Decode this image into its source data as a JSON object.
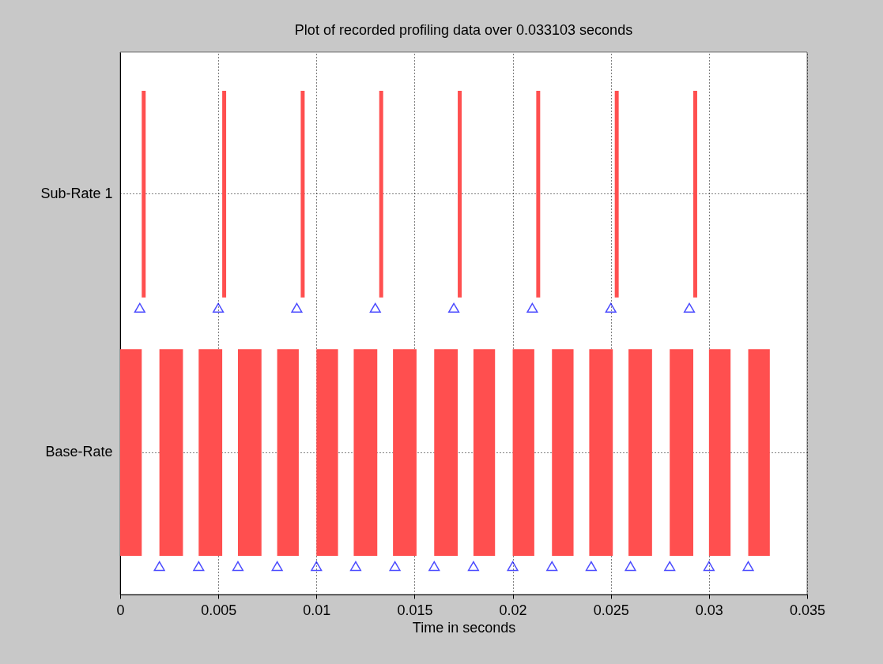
{
  "chart_data": {
    "type": "bar",
    "orientation": "horizontal",
    "title": "Plot of recorded profiling data over 0.033103 seconds",
    "xlabel": "Time in seconds",
    "categories": [
      "Sub-Rate 1",
      "Base-Rate"
    ],
    "xlim": [
      0,
      0.035
    ],
    "xticks": [
      0,
      0.005,
      0.01,
      0.015,
      0.02,
      0.025,
      0.03,
      0.035
    ],
    "grid": true,
    "series": [
      {
        "color": "#ff4f4f",
        "base": [
          0.0011,
          0
        ],
        "values": [
          0.0002,
          0.0011
        ]
      },
      {
        "color": "#ff4f4f",
        "base": [
          0.0052,
          0.002
        ],
        "values": [
          0.0002,
          0.0012
        ]
      },
      {
        "color": "#ff4f4f",
        "base": [
          0.0092,
          0.004
        ],
        "values": [
          0.0002,
          0.0012
        ]
      },
      {
        "color": "#ff4f4f",
        "base": [
          0.0132,
          0.006
        ],
        "values": [
          0.0002,
          0.0012
        ]
      },
      {
        "color": "#ff4f4f",
        "base": [
          0.0172,
          0.008
        ],
        "values": [
          0.0002,
          0.0011
        ]
      },
      {
        "color": "#ff4f4f",
        "base": [
          0.0212,
          0.01
        ],
        "values": [
          0.0002,
          0.0011
        ]
      },
      {
        "color": "#ff4f4f",
        "base": [
          0.0252,
          0.0119
        ],
        "values": [
          0.0002,
          0.0012
        ]
      },
      {
        "color": "#ff4f4f",
        "base": [
          0.0292,
          0.0139
        ],
        "values": [
          0.0002,
          0.0012
        ]
      },
      {
        "color": "#ff4f4f",
        "base": [
          null,
          0.016
        ],
        "values": [
          null,
          0.0012
        ]
      },
      {
        "color": "#ff4f4f",
        "base": [
          null,
          0.018
        ],
        "values": [
          null,
          0.0011
        ]
      },
      {
        "color": "#ff4f4f",
        "base": [
          null,
          0.02
        ],
        "values": [
          null,
          0.0011
        ]
      },
      {
        "color": "#ff4f4f",
        "base": [
          null,
          0.022
        ],
        "values": [
          null,
          0.0011
        ]
      },
      {
        "color": "#ff4f4f",
        "base": [
          null,
          0.0239
        ],
        "values": [
          null,
          0.0012
        ]
      },
      {
        "color": "#ff4f4f",
        "base": [
          null,
          0.0259
        ],
        "values": [
          null,
          0.0012
        ]
      },
      {
        "color": "#ff4f4f",
        "base": [
          null,
          0.028
        ],
        "values": [
          null,
          0.0012
        ]
      },
      {
        "color": "#ff4f4f",
        "base": [
          null,
          0.03
        ],
        "values": [
          null,
          0.0011
        ]
      },
      {
        "color": "#ff4f4f",
        "base": [
          null,
          0.032
        ],
        "values": [
          null,
          0.0011
        ]
      },
      {
        "type": "scatter",
        "marker": "triangle",
        "color": "#0000ff",
        "values": [
          0.001,
          0.002
        ]
      },
      {
        "type": "scatter",
        "marker": "triangle",
        "color": "#0000ff",
        "values": [
          0.005,
          0.004
        ]
      },
      {
        "type": "scatter",
        "marker": "triangle",
        "color": "#0000ff",
        "values": [
          0.009,
          0.006
        ]
      },
      {
        "type": "scatter",
        "marker": "triangle",
        "color": "#0000ff",
        "values": [
          0.013,
          0.008
        ]
      },
      {
        "type": "scatter",
        "marker": "triangle",
        "color": "#0000ff",
        "values": [
          0.017,
          0.01
        ]
      },
      {
        "type": "scatter",
        "marker": "triangle",
        "color": "#0000ff",
        "values": [
          0.021,
          0.012
        ]
      },
      {
        "type": "scatter",
        "marker": "triangle",
        "color": "#0000ff",
        "values": [
          0.025,
          0.014
        ]
      },
      {
        "type": "scatter",
        "marker": "triangle",
        "color": "#0000ff",
        "values": [
          0.029,
          0.016
        ]
      },
      {
        "type": "scatter",
        "marker": "triangle",
        "color": "#0000ff",
        "values": [
          null,
          0.018
        ]
      },
      {
        "type": "scatter",
        "marker": "triangle",
        "color": "#0000ff",
        "values": [
          null,
          0.02
        ]
      },
      {
        "type": "scatter",
        "marker": "triangle",
        "color": "#0000ff",
        "values": [
          null,
          0.022
        ]
      },
      {
        "type": "scatter",
        "marker": "triangle",
        "color": "#0000ff",
        "values": [
          null,
          0.024
        ]
      },
      {
        "type": "scatter",
        "marker": "triangle",
        "color": "#0000ff",
        "values": [
          null,
          0.026
        ]
      },
      {
        "type": "scatter",
        "marker": "triangle",
        "color": "#0000ff",
        "values": [
          null,
          0.028
        ]
      },
      {
        "type": "scatter",
        "marker": "triangle",
        "color": "#0000ff",
        "values": [
          null,
          0.03
        ]
      },
      {
        "type": "scatter",
        "marker": "triangle",
        "color": "#0000ff",
        "values": [
          null,
          0.032
        ]
      }
    ]
  }
}
